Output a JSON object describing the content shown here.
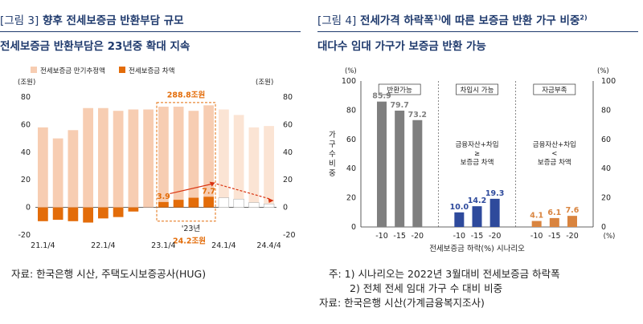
{
  "left": {
    "tag": "[그림 3]",
    "title": "향후 전세보증금 반환부담 규모",
    "subtitle": "전세보증금 반환부담은 23년중 확대 지속",
    "source": "자료: 한국은행 시산, 주택도시보증공사(HUG)",
    "legend": [
      "전세보증금 만기추정액",
      "전세보증금 차액"
    ],
    "unit_left": "(조원)",
    "unit_right": "(조원)",
    "annotations": {
      "total_label": "288.8조원",
      "year_label": "'23년",
      "sum_label": "24.2조원",
      "bar_labels": [
        "3.9",
        "7.7"
      ]
    },
    "colors": {
      "maturity": "#f7cdb2",
      "maturity_forecast": "#fbe4d4",
      "diff": "#e36c09",
      "diff_forecast": "#ffffff",
      "accent": "#d9320f"
    }
  },
  "right": {
    "tag": "[그림 4]",
    "title_a": "전세가격 하락폭",
    "title_sup_a": "1)",
    "title_b": "에 따른 보증금 반환 가구 비중",
    "title_sup_b": "2)",
    "subtitle": "대다수 임대 가구가 보증금 반환 가능",
    "notes": [
      "주: 1) 시나리오는 2022년 3월대비 전세보증금 하락폭",
      "2) 전체 전세 임대 가구 수 대비 비중",
      "자료: 한국은행 시산(가계금융복지조사)"
    ],
    "unit": "(%)",
    "ylabel": "가구 수 비중",
    "xlabel": "전세보증금 하락(%) 시나리오",
    "x_unit": "(%)",
    "groups": [
      "반환가능",
      "차입시 가능",
      "자금부족"
    ],
    "group_notes": [
      "금융자산+차입 ≥ 보증금 차액",
      "금융자산+차입 < 보증금 차액"
    ],
    "colors": {
      "g1": "#7f7f7f",
      "g2": "#2e4a9c",
      "g3": "#d9843f"
    }
  },
  "chart_data": [
    {
      "type": "bar",
      "title": "향후 전세보증금 반환부담 규모",
      "categories": [
        "21.1/4",
        "21.2/4",
        "21.3/4",
        "21.4/4",
        "22.1/4",
        "22.2/4",
        "22.3/4",
        "22.4/4",
        "23.1/4",
        "23.2/4",
        "23.3/4",
        "23.4/4",
        "24.1/4",
        "24.2/4",
        "24.3/4",
        "24.4/4"
      ],
      "x_tick_labels": [
        "21.1/4",
        "22.1/4",
        "23.1/4",
        "24.1/4",
        "24.4/4"
      ],
      "series": [
        {
          "name": "전세보증금 만기추정액",
          "axis": "left",
          "values": [
            58,
            50,
            56,
            72,
            72,
            70,
            71,
            71,
            73,
            73,
            70,
            74,
            71,
            67,
            58,
            59
          ]
        },
        {
          "name": "전세보증금 차액",
          "axis": "right",
          "values": [
            -10,
            -9,
            -10,
            -11,
            -8,
            -7,
            -3,
            0,
            3.9,
            5.5,
            7,
            7.7,
            7,
            6,
            3.5,
            2.5
          ]
        }
      ],
      "ylim": [
        -20,
        80
      ],
      "y_ticks": [
        -20,
        0,
        20,
        40,
        60,
        80
      ],
      "y2lim": [
        -20,
        80
      ],
      "y2_ticks": [
        -20,
        0,
        20,
        40,
        60,
        80
      ],
      "legend": "top-left"
    },
    {
      "type": "bar",
      "title": "전세가격 하락폭에 따른 보증금 반환 가구 비중",
      "groups": [
        "반환가능",
        "차입시 가능",
        "자금부족"
      ],
      "categories": [
        "-10",
        "-15",
        "-20"
      ],
      "series": [
        {
          "name": "반환가능",
          "values": [
            85.9,
            79.7,
            73.2
          ]
        },
        {
          "name": "차입시 가능",
          "values": [
            10.0,
            14.2,
            19.3
          ]
        },
        {
          "name": "자금부족",
          "values": [
            4.1,
            6.1,
            7.6
          ]
        }
      ],
      "ylim": [
        0,
        100
      ],
      "y_ticks": [
        0,
        20,
        40,
        60,
        80,
        100
      ],
      "ylabel": "가구 수 비중",
      "xlabel": "전세보증금 하락(%) 시나리오"
    }
  ]
}
